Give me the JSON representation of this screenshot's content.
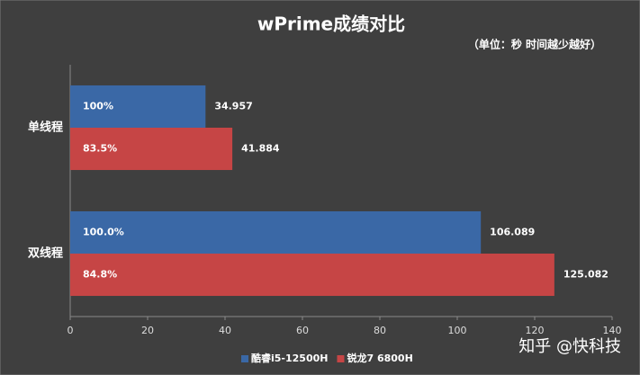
{
  "chart_data": {
    "type": "hbar",
    "title": "wPrime成绩对比",
    "subtitle": "（单位：秒 时间越少越好）",
    "categories": [
      "单线程",
      "双线程"
    ],
    "series": [
      {
        "name": "酷睿i5-12500H",
        "color": "#3a68a6",
        "values": [
          34.957,
          106.089
        ],
        "inner_labels": [
          "100%",
          "100.0%"
        ]
      },
      {
        "name": "锐龙7 6800H",
        "color": "#c64545",
        "values": [
          41.884,
          125.082
        ],
        "inner_labels": [
          "83.5%",
          "84.8%"
        ]
      }
    ],
    "xlim": [
      0,
      140
    ],
    "xticks": [
      0,
      20,
      40,
      60,
      80,
      100,
      120,
      140
    ],
    "grid": false,
    "legend": "bottom",
    "watermark": "知乎 @快科技"
  }
}
